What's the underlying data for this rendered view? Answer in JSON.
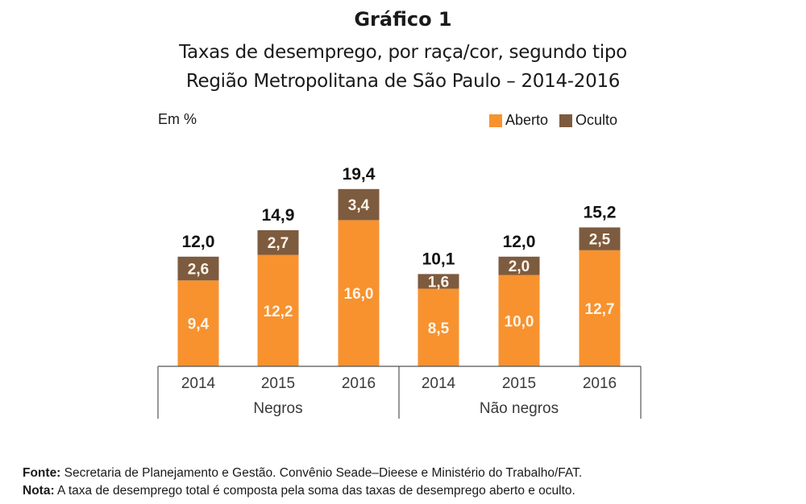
{
  "chart_data": {
    "type": "bar",
    "stacked": true,
    "title": "Gráfico 1",
    "subtitle_lines": [
      "Taxas de desemprego, por raça/cor, segundo tipo",
      "Região Metropolitana de São Paulo – 2014-2016"
    ],
    "ylabel": "Em %",
    "groups": [
      {
        "name": "Negros",
        "categories": [
          "2014",
          "2015",
          "2016"
        ]
      },
      {
        "name": "Não negros",
        "categories": [
          "2014",
          "2015",
          "2016"
        ]
      }
    ],
    "categories": [
      "2014",
      "2015",
      "2016",
      "2014",
      "2015",
      "2016"
    ],
    "series": [
      {
        "name": "Aberto",
        "color": "#f7922f",
        "values": [
          9.4,
          12.2,
          16.0,
          8.5,
          10.0,
          12.7
        ],
        "labels": [
          "9,4",
          "12,2",
          "16,0",
          "8,5",
          "10,0",
          "12,7"
        ]
      },
      {
        "name": "Oculto",
        "color": "#7d5b3f",
        "values": [
          2.6,
          2.7,
          3.4,
          1.6,
          2.0,
          2.5
        ],
        "labels": [
          "2,6",
          "2,7",
          "3,4",
          "1,6",
          "2,0",
          "2,5"
        ]
      }
    ],
    "totals": [
      12.0,
      14.9,
      19.4,
      10.1,
      12.0,
      15.2
    ],
    "total_labels": [
      "12,0",
      "14,9",
      "19,4",
      "10,1",
      "12,0",
      "15,2"
    ],
    "ylim": [
      0,
      20
    ],
    "grid": false,
    "legend_position": "top-right"
  },
  "footer": {
    "source_label": "Fonte:",
    "source_text": " Secretaria de Planejamento e Gestão. Convênio Seade–Dieese e Ministério do Trabalho/FAT.",
    "note_label": "Nota:",
    "note_text": " A taxa de desemprego total é composta pela soma das taxas de desemprego aberto e oculto."
  }
}
